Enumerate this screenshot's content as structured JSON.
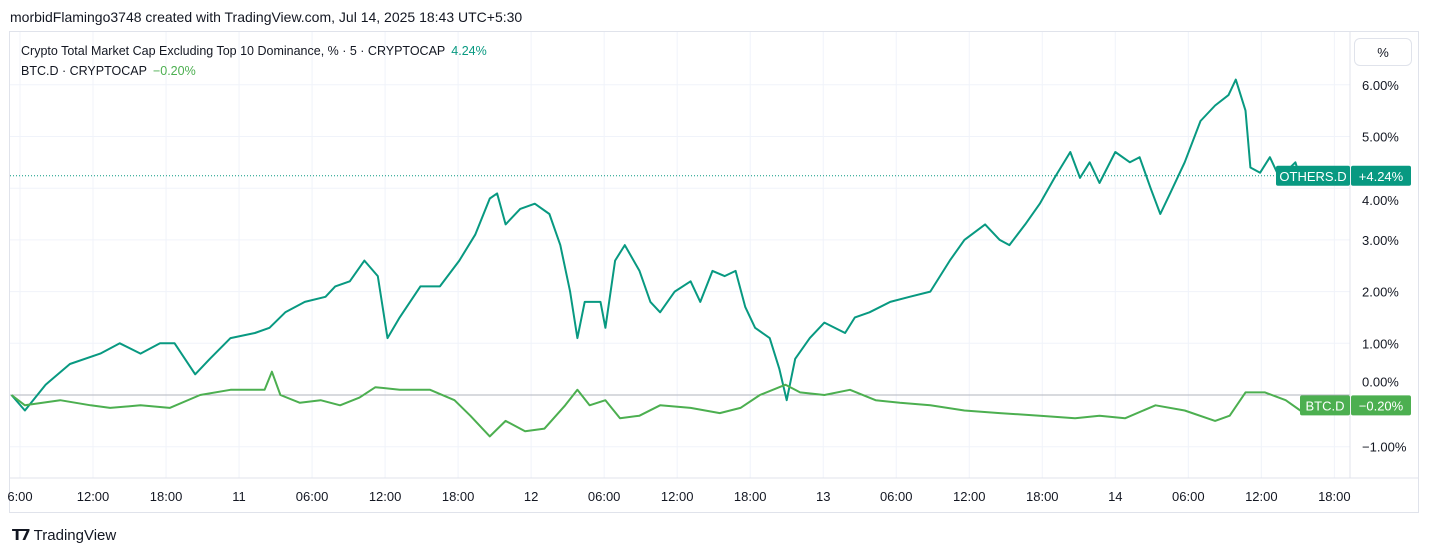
{
  "header": {
    "attribution": "morbidFlamingo3748 created with TradingView.com, Jul 14, 2025 18:43 UTC+5:30"
  },
  "legend": [
    {
      "label": "Crypto Total Market Cap Excluding Top 10 Dominance, % · 5 · CRYPTOCAP",
      "value": "4.24%"
    },
    {
      "label": "BTC.D · CRYPTOCAP",
      "value": "−0.20%"
    }
  ],
  "price_axis": {
    "unit_button": "%"
  },
  "logo": {
    "text": "TradingView",
    "mark": "TV"
  },
  "chart_data": {
    "type": "line",
    "xlabel": "",
    "ylabel": "%",
    "x_units": "hours since Jul 10 00:00",
    "xlim": [
      5.2,
      125
    ],
    "ylim": [
      -1.6,
      6.9
    ],
    "grid": true,
    "x_ticks": [
      {
        "x": 6,
        "label": "6:00"
      },
      {
        "x": 12,
        "label": "12:00"
      },
      {
        "x": 18,
        "label": "18:00"
      },
      {
        "x": 24,
        "label": "11"
      },
      {
        "x": 30,
        "label": "06:00"
      },
      {
        "x": 36,
        "label": "12:00"
      },
      {
        "x": 42,
        "label": "18:00"
      },
      {
        "x": 48,
        "label": "12"
      },
      {
        "x": 54,
        "label": "06:00"
      },
      {
        "x": 60,
        "label": "12:00"
      },
      {
        "x": 66,
        "label": "18:00"
      },
      {
        "x": 72,
        "label": "13"
      },
      {
        "x": 78,
        "label": "06:00"
      },
      {
        "x": 84,
        "label": "12:00"
      },
      {
        "x": 90,
        "label": "18:00"
      },
      {
        "x": 96,
        "label": "14"
      },
      {
        "x": 102,
        "label": "06:00"
      },
      {
        "x": 108,
        "label": "12:00"
      },
      {
        "x": 114,
        "label": "18:00"
      }
    ],
    "y_ticks": [
      {
        "y": 6,
        "label": "6.00%"
      },
      {
        "y": 5,
        "label": "5.00%"
      },
      {
        "y": 4,
        "label": "4.00%"
      },
      {
        "y": 3,
        "label": "3.00%"
      },
      {
        "y": 2,
        "label": "2.00%"
      },
      {
        "y": 1,
        "label": "1.00%"
      },
      {
        "y": 0,
        "label": "0.00%"
      },
      {
        "y": -1,
        "label": "−1.00%"
      }
    ],
    "series": [
      {
        "name": "OTHERS.D",
        "color": "#089981",
        "last_label": "+4.24%",
        "last": 4.24,
        "points": [
          [
            5.3,
            0
          ],
          [
            6.4,
            -0.3
          ],
          [
            8.1,
            0.2
          ],
          [
            10.1,
            0.6
          ],
          [
            12.6,
            0.8
          ],
          [
            14.2,
            1.0
          ],
          [
            15.9,
            0.8
          ],
          [
            17.5,
            1.0
          ],
          [
            18.7,
            1.0
          ],
          [
            20.4,
            0.4
          ],
          [
            21.6,
            0.7
          ],
          [
            23.3,
            1.1
          ],
          [
            25.3,
            1.2
          ],
          [
            26.5,
            1.3
          ],
          [
            27.8,
            1.6
          ],
          [
            29.4,
            1.8
          ],
          [
            31.1,
            1.9
          ],
          [
            31.9,
            2.1
          ],
          [
            33.1,
            2.2
          ],
          [
            34.3,
            2.6
          ],
          [
            35.4,
            2.3
          ],
          [
            36.2,
            1.1
          ],
          [
            37.2,
            1.5
          ],
          [
            38.9,
            2.1
          ],
          [
            40.5,
            2.1
          ],
          [
            42.1,
            2.6
          ],
          [
            43.4,
            3.1
          ],
          [
            44.6,
            3.8
          ],
          [
            45.2,
            3.9
          ],
          [
            45.9,
            3.3
          ],
          [
            47.1,
            3.6
          ],
          [
            48.3,
            3.7
          ],
          [
            49.5,
            3.5
          ],
          [
            50.4,
            2.9
          ],
          [
            51.2,
            2.0
          ],
          [
            51.8,
            1.1
          ],
          [
            52.4,
            1.8
          ],
          [
            53.7,
            1.8
          ],
          [
            54.1,
            1.3
          ],
          [
            54.9,
            2.6
          ],
          [
            55.7,
            2.9
          ],
          [
            56.9,
            2.4
          ],
          [
            57.8,
            1.8
          ],
          [
            58.6,
            1.6
          ],
          [
            59.8,
            2.0
          ],
          [
            61.1,
            2.2
          ],
          [
            61.9,
            1.8
          ],
          [
            62.9,
            2.4
          ],
          [
            63.9,
            2.3
          ],
          [
            64.8,
            2.4
          ],
          [
            65.6,
            1.7
          ],
          [
            66.4,
            1.3
          ],
          [
            67.6,
            1.1
          ],
          [
            68.4,
            0.5
          ],
          [
            69.0,
            -0.1
          ],
          [
            69.7,
            0.7
          ],
          [
            70.9,
            1.1
          ],
          [
            72.1,
            1.4
          ],
          [
            73.8,
            1.2
          ],
          [
            74.6,
            1.5
          ],
          [
            75.8,
            1.6
          ],
          [
            77.5,
            1.8
          ],
          [
            79.1,
            1.9
          ],
          [
            80.8,
            2.0
          ],
          [
            82.4,
            2.6
          ],
          [
            83.6,
            3.0
          ],
          [
            85.3,
            3.3
          ],
          [
            86.5,
            3.0
          ],
          [
            87.3,
            2.9
          ],
          [
            88.6,
            3.3
          ],
          [
            89.8,
            3.7
          ],
          [
            91.0,
            4.2
          ],
          [
            92.3,
            4.7
          ],
          [
            93.1,
            4.2
          ],
          [
            93.9,
            4.5
          ],
          [
            94.7,
            4.1
          ],
          [
            96.0,
            4.7
          ],
          [
            97.2,
            4.5
          ],
          [
            98.0,
            4.6
          ],
          [
            98.9,
            4.0
          ],
          [
            99.7,
            3.5
          ],
          [
            100.5,
            3.9
          ],
          [
            101.7,
            4.5
          ],
          [
            103.0,
            5.3
          ],
          [
            104.2,
            5.6
          ],
          [
            105.3,
            5.8
          ],
          [
            105.9,
            6.1
          ],
          [
            106.7,
            5.5
          ],
          [
            107.1,
            4.4
          ],
          [
            107.9,
            4.3
          ],
          [
            108.7,
            4.6
          ],
          [
            109.5,
            4.2
          ],
          [
            110.8,
            4.5
          ],
          [
            111.2,
            4.2
          ],
          [
            112.0,
            4.2
          ],
          [
            113.5,
            4.24
          ]
        ]
      },
      {
        "name": "BTC.D",
        "color": "#4caf50",
        "last_label": "−0.20%",
        "last": -0.2,
        "points": [
          [
            5.3,
            0
          ],
          [
            6.4,
            -0.2
          ],
          [
            9.3,
            -0.1
          ],
          [
            11.8,
            -0.2
          ],
          [
            13.4,
            -0.25
          ],
          [
            15.9,
            -0.2
          ],
          [
            18.3,
            -0.25
          ],
          [
            20.8,
            0
          ],
          [
            23.3,
            0.1
          ],
          [
            26.1,
            0.1
          ],
          [
            26.7,
            0.45
          ],
          [
            27.4,
            0
          ],
          [
            29.0,
            -0.15
          ],
          [
            30.7,
            -0.1
          ],
          [
            32.3,
            -0.2
          ],
          [
            33.9,
            -0.05
          ],
          [
            35.2,
            0.15
          ],
          [
            37.2,
            0.1
          ],
          [
            39.7,
            0.1
          ],
          [
            41.7,
            -0.1
          ],
          [
            43.0,
            -0.4
          ],
          [
            44.6,
            -0.8
          ],
          [
            45.9,
            -0.5
          ],
          [
            47.5,
            -0.7
          ],
          [
            49.1,
            -0.65
          ],
          [
            50.8,
            -0.2
          ],
          [
            51.8,
            0.1
          ],
          [
            52.8,
            -0.2
          ],
          [
            54.1,
            -0.1
          ],
          [
            55.3,
            -0.45
          ],
          [
            56.9,
            -0.4
          ],
          [
            58.6,
            -0.2
          ],
          [
            61.1,
            -0.25
          ],
          [
            63.5,
            -0.35
          ],
          [
            65.2,
            -0.25
          ],
          [
            66.8,
            0
          ],
          [
            68.9,
            0.2
          ],
          [
            70.1,
            0.05
          ],
          [
            72.1,
            0
          ],
          [
            74.2,
            0.1
          ],
          [
            76.3,
            -0.1
          ],
          [
            78.3,
            -0.15
          ],
          [
            80.8,
            -0.2
          ],
          [
            83.6,
            -0.3
          ],
          [
            86.5,
            -0.35
          ],
          [
            89.8,
            -0.4
          ],
          [
            92.7,
            -0.45
          ],
          [
            94.7,
            -0.4
          ],
          [
            96.8,
            -0.45
          ],
          [
            99.3,
            -0.2
          ],
          [
            101.7,
            -0.3
          ],
          [
            104.2,
            -0.5
          ],
          [
            105.4,
            -0.4
          ],
          [
            106.7,
            0.05
          ],
          [
            108.3,
            0.05
          ],
          [
            110.0,
            -0.1
          ],
          [
            111.2,
            -0.3
          ],
          [
            112.8,
            -0.2
          ]
        ]
      }
    ]
  }
}
